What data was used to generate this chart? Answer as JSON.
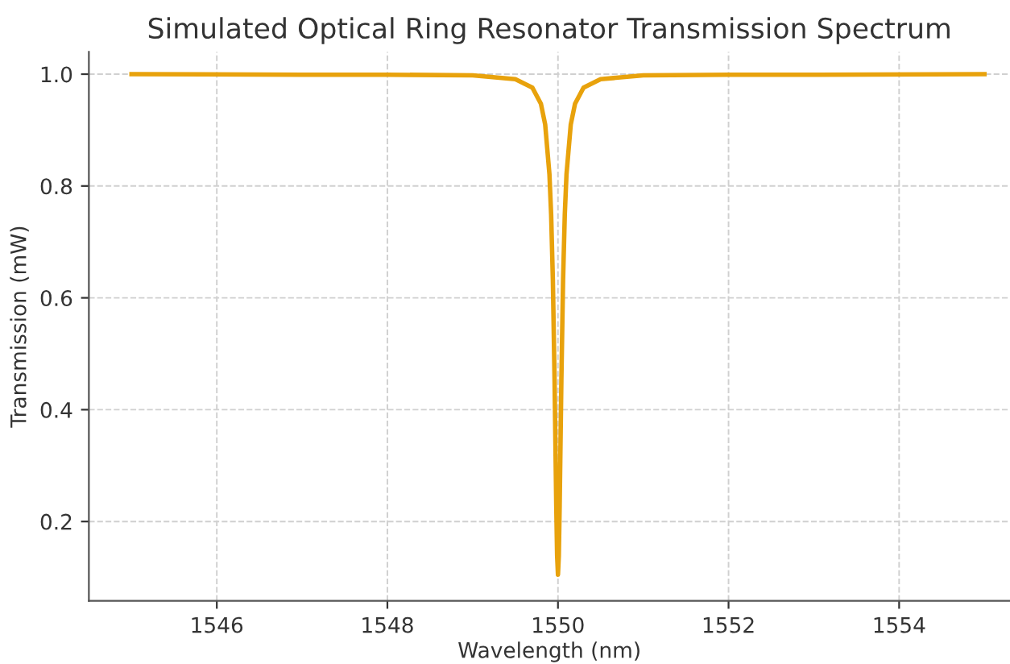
{
  "chart_data": {
    "type": "line",
    "title": "Simulated Optical Ring Resonator Transmission Spectrum",
    "xlabel": "Wavelength (nm)",
    "ylabel": "Transmission (mW)",
    "x": [
      1545,
      1547,
      1548,
      1549,
      1549.5,
      1549.7,
      1549.8,
      1549.85,
      1549.9,
      1549.92,
      1549.94,
      1549.96,
      1549.98,
      1549.99,
      1550,
      1550.01,
      1550.02,
      1550.04,
      1550.06,
      1550.08,
      1550.1,
      1550.15,
      1550.2,
      1550.3,
      1550.5,
      1551,
      1552,
      1553,
      1555
    ],
    "series": [
      {
        "color": "#e8a20c",
        "values": [
          1.0,
          0.999,
          0.999,
          0.998,
          0.991,
          0.976,
          0.947,
          0.91,
          0.821,
          0.749,
          0.633,
          0.454,
          0.228,
          0.139,
          0.105,
          0.139,
          0.228,
          0.454,
          0.633,
          0.749,
          0.821,
          0.91,
          0.947,
          0.976,
          0.991,
          0.998,
          0.999,
          0.999,
          1.0
        ]
      }
    ],
    "xlim": [
      1544.5,
      1555.3
    ],
    "ylim": [
      0.058,
      1.04
    ],
    "xticks": [
      1546,
      1548,
      1550,
      1552,
      1554
    ],
    "yticks": [
      {
        "value": 0.2,
        "label": "0.2"
      },
      {
        "value": 0.4,
        "label": "0.4"
      },
      {
        "value": 0.6,
        "label": "0.6"
      },
      {
        "value": 0.8,
        "label": "0.8"
      },
      {
        "value": 1.0,
        "label": "1.0"
      }
    ],
    "grid": true,
    "line_style": "solid",
    "legend": false
  }
}
